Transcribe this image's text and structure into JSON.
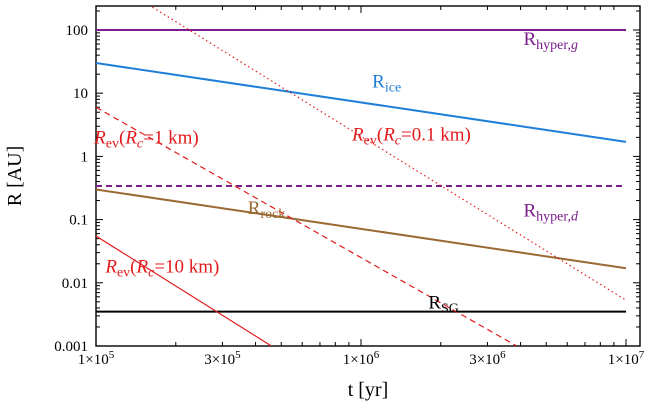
{
  "chart_data": {
    "type": "line",
    "xlabel": "t [yr]",
    "ylabel": "R [AU]",
    "xscale": "log",
    "yscale": "log",
    "xlim": [
      100000,
      10000000
    ],
    "ylim": [
      0.001,
      250
    ],
    "grid": false,
    "legend": "none (series labeled inline)",
    "x_ticks": [
      {
        "value": 100000,
        "mant": "1×10",
        "exp": "5"
      },
      {
        "value": 300000,
        "mant": "3×10",
        "exp": "5"
      },
      {
        "value": 1000000,
        "mant": "1×10",
        "exp": "6"
      },
      {
        "value": 3000000,
        "mant": "3×10",
        "exp": "6"
      },
      {
        "value": 10000000,
        "mant": "1×10",
        "exp": "7"
      }
    ],
    "y_ticks": [
      {
        "value": 0.001,
        "label": "0.001"
      },
      {
        "value": 0.01,
        "label": "0.01"
      },
      {
        "value": 0.1,
        "label": "0.1"
      },
      {
        "value": 1,
        "label": "1"
      },
      {
        "value": 10,
        "label": "10"
      },
      {
        "value": 100,
        "label": "100"
      }
    ],
    "series": [
      {
        "id": "r_hyper_g",
        "label_main": "R",
        "label_sub": "hyper,",
        "label_sub_italic": "g",
        "color": "#7b1d8c",
        "dash": "solid",
        "x": [
          100000,
          10000000
        ],
        "y": [
          100,
          100
        ],
        "label_at": [
          5200000,
          58
        ]
      },
      {
        "id": "r_ice",
        "label_main": "R",
        "label_sub": "ice",
        "color": "#1f7fd8",
        "dash": "solid",
        "x": [
          100000,
          10000000
        ],
        "y": [
          30,
          1.7
        ],
        "label_at": [
          1250000,
          12.2
        ]
      },
      {
        "id": "r_hyper_d",
        "label_main": "R",
        "label_sub": "hyper,",
        "label_sub_italic": "d",
        "color": "#7b1d8c",
        "dash": "dashed",
        "x": [
          100000,
          10000000
        ],
        "y": [
          0.34,
          0.34
        ],
        "label_at": [
          5200000,
          0.112
        ]
      },
      {
        "id": "r_rock",
        "label_main": "R",
        "label_sub": "rock",
        "color": "#9a6a35",
        "dash": "solid",
        "x": [
          100000,
          10000000
        ],
        "y": [
          0.3,
          0.017
        ],
        "label_at": [
          440000,
          0.122
        ]
      },
      {
        "id": "r_sg",
        "label_main": "R",
        "label_sub": "SG",
        "color": "#000000",
        "dash": "solid",
        "x": [
          100000,
          10000000
        ],
        "y": [
          0.0035,
          0.0035
        ],
        "label_at": [
          2050000,
          0.0039
        ]
      },
      {
        "id": "r_ev_01",
        "label_main": "R",
        "label_sub": "ev",
        "label_paren": "(R",
        "label_paren_sub": "c",
        "label_value": "=0.1 km)",
        "color": "#e31a1c",
        "dash": "dotted",
        "x": [
          158000,
          10000000
        ],
        "y": [
          250,
          0.0053
        ],
        "label_at": [
          1550000,
          1.8
        ]
      },
      {
        "id": "r_ev_1",
        "label_main": "R",
        "label_sub": "ev",
        "label_paren": "(R",
        "label_paren_sub": "c",
        "label_value": "=1 km)",
        "color": "#e31a1c",
        "dash": "dashed",
        "x": [
          100000,
          3870000
        ],
        "y": [
          6,
          0.001
        ],
        "label_at": [
          155000,
          1.6
        ]
      },
      {
        "id": "r_ev_10",
        "label_main": "R",
        "label_sub": "ev",
        "label_paren": "(R",
        "label_paren_sub": "c",
        "label_value": "=10 km)",
        "color": "#e31a1c",
        "dash": "solid",
        "x": [
          100000,
          459000
        ],
        "y": [
          0.055,
          0.001
        ],
        "label_at": [
          178000,
          0.0145
        ]
      }
    ]
  }
}
